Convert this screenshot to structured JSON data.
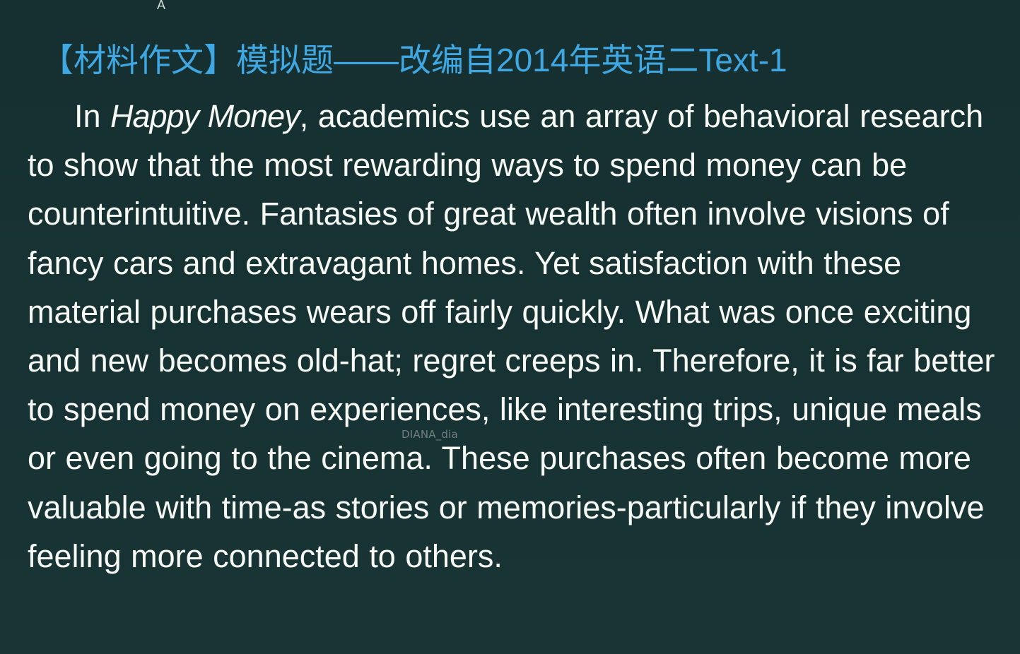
{
  "header": {
    "top_fragment": "A",
    "title": "【材料作文】模拟题——改编自2014年英语二Text-1"
  },
  "article": {
    "intro_word": "In",
    "book_title": "Happy Money",
    "after_title": ", academics use an array of behavioral research to show that the most rewarding ways to spend money can be counterintuitive. Fantasies of great wealth often involve visions of fancy cars and extravagant homes. Yet satisfaction with these material purchases wears off fairly quickly. What was once exciting and new becomes old-hat; regret creeps in. Therefore, it is far better to spend money on experiences, like interesting trips, unique meals or even going to the cinema. These purchases often become more valuable with time-as stories or memories-particularly if they involve feeling more connected to others."
  },
  "watermark": {
    "text": "DIANA_dia"
  }
}
